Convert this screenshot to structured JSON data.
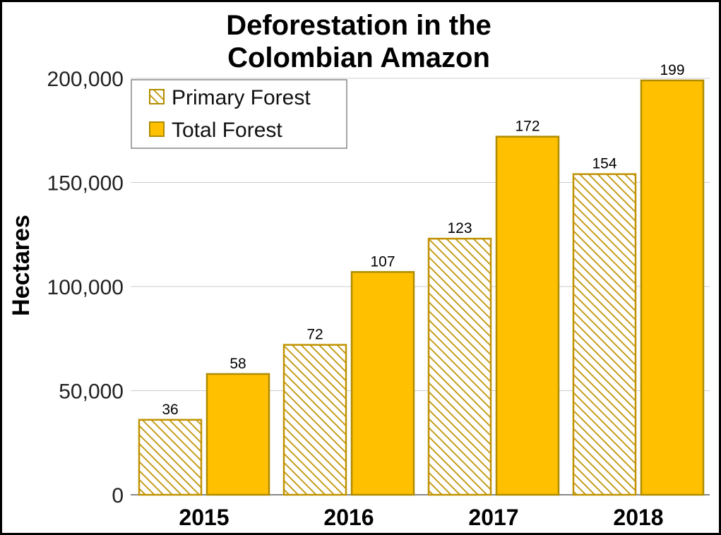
{
  "chart_data": {
    "type": "bar",
    "title_lines": [
      "Deforestation in the",
      "Colombian Amazon"
    ],
    "ylabel": "Hectares",
    "xlabel": "",
    "categories": [
      "2015",
      "2016",
      "2017",
      "2018"
    ],
    "ylim": [
      0,
      200000
    ],
    "yticks": [
      0,
      50000,
      100000,
      150000,
      200000
    ],
    "ytick_labels": [
      "0",
      "50,000",
      "100,000",
      "150,000",
      "200,000"
    ],
    "grid": true,
    "legend_position": "top-left",
    "series": [
      {
        "name": "Primary Forest",
        "values": [
          36000,
          72000,
          123000,
          154000
        ],
        "labels": [
          "36",
          "72",
          "123",
          "154"
        ],
        "pattern": "hatched",
        "color": "#C09200"
      },
      {
        "name": "Total Forest",
        "values": [
          58000,
          107000,
          172000,
          199000
        ],
        "labels": [
          "58",
          "107",
          "172",
          "199"
        ],
        "pattern": "solid",
        "color": "#FFC000",
        "edge_color": "#B08C00"
      }
    ]
  }
}
